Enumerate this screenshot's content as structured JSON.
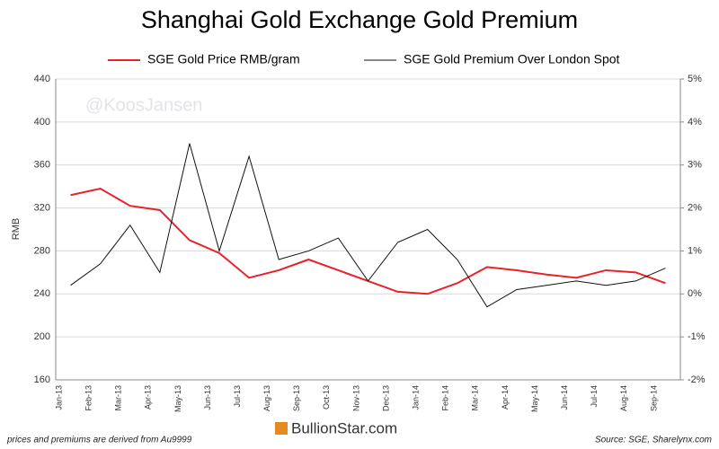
{
  "chart_data": {
    "type": "line",
    "title": "Shanghai Gold Exchange Gold Premium",
    "y_label": "RMB",
    "watermark": "@KoosJansen",
    "footnote": "prices and premiums are derived from Au9999",
    "source": "Source: SGE, Sharelynx.com",
    "logo": "BullionStar.com",
    "categories": [
      "Jan-13",
      "Feb-13",
      "Mar-13",
      "Apr-13",
      "May-13",
      "Jun-13",
      "Jul-13",
      "Aug-13",
      "Sep-13",
      "Oct-13",
      "Nov-13",
      "Dec-13",
      "Jan-14",
      "Feb-14",
      "Mar-14",
      "Apr-14",
      "May-14",
      "Jun-14",
      "Jul-14",
      "Aug-14",
      "Sep-14"
    ],
    "series": [
      {
        "name": "SGE Gold Price RMB/gram",
        "color": "#e8212b",
        "values": [
          332,
          338,
          322,
          318,
          290,
          278,
          255,
          262,
          272,
          262,
          252,
          242,
          240,
          250,
          265,
          262,
          258,
          255,
          262,
          260,
          250
        ]
      },
      {
        "name": "SGE Gold Premium Over London Spot",
        "color": "#111111",
        "axis": "y2",
        "values": [
          0.2,
          0.7,
          1.6,
          0.5,
          3.5,
          1.0,
          3.2,
          0.8,
          1.0,
          1.3,
          0.3,
          1.2,
          1.5,
          0.8,
          -0.3,
          0.1,
          0.2,
          0.3,
          0.2,
          0.3,
          0.6
        ]
      }
    ],
    "ylim": [
      160,
      440
    ],
    "yticks": [
      160,
      200,
      240,
      280,
      320,
      360,
      400,
      440
    ],
    "y2lim": [
      -2,
      5
    ],
    "y2ticks": [
      {
        "value": -2,
        "label": "-2%"
      },
      {
        "value": -1,
        "label": "-1%"
      },
      {
        "value": 0,
        "label": "0%"
      },
      {
        "value": 1,
        "label": "1%"
      },
      {
        "value": 2,
        "label": "2%"
      },
      {
        "value": 3,
        "label": "3%"
      },
      {
        "value": 4,
        "label": "4%"
      },
      {
        "value": 5,
        "label": "5%"
      }
    ],
    "grid": true
  }
}
